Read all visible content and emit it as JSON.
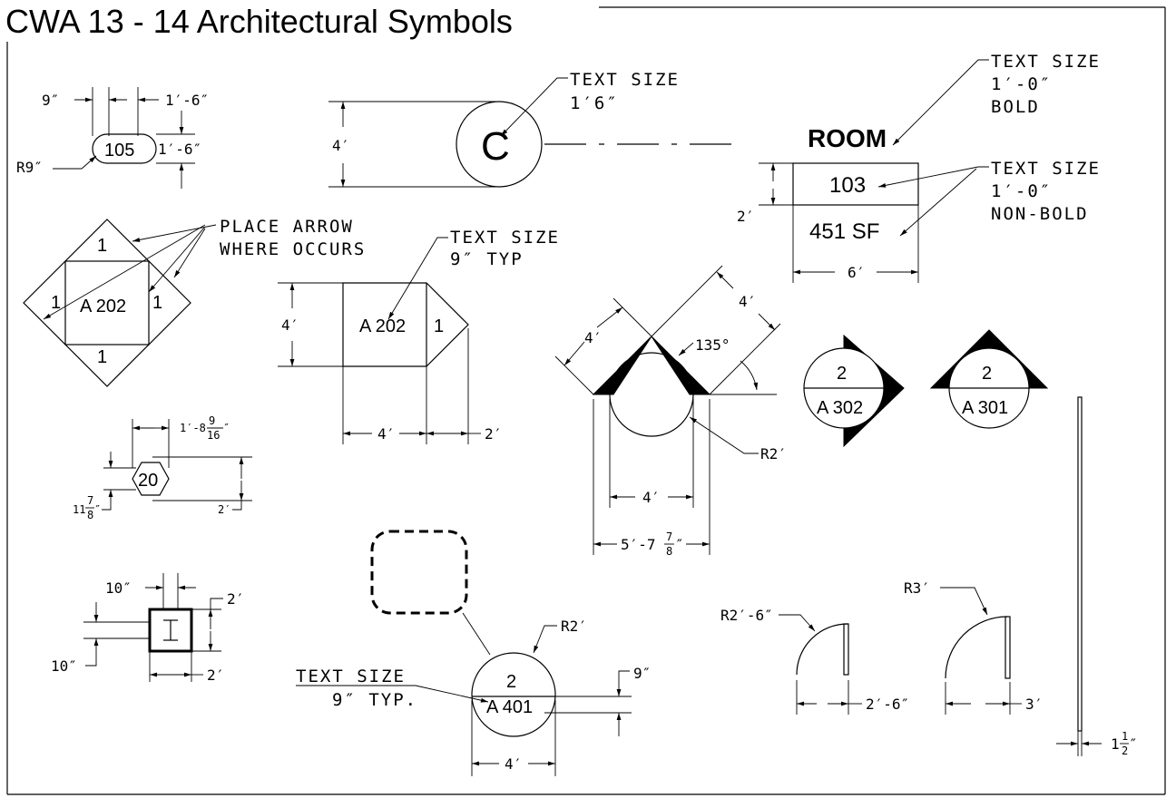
{
  "title": "CWA 13 - 14 Architectural Symbols",
  "room_tag": {
    "label_dim_top_left": "9″",
    "label_dim_top_right": "1′-6″",
    "number": "105",
    "height_dim": "1′-6″",
    "radius": "R9″"
  },
  "section_tag": {
    "note_line1": "TEXT SIZE",
    "note_line2": "1′6″",
    "height": "4′",
    "letter": "C"
  },
  "room_name_tag": {
    "bold_note_1": "TEXT SIZE",
    "bold_note_2": "1′-0″",
    "bold_note_3": "BOLD",
    "name": "ROOM",
    "number": "103",
    "area": "451 SF",
    "nonbold_note_1": "TEXT SIZE",
    "nonbold_note_2": "1′-0″",
    "nonbold_note_3": "NON-BOLD",
    "height": "2′",
    "width": "6′"
  },
  "interior_elevation": {
    "note_1": "PLACE ARROW",
    "note_2": "WHERE OCCURS",
    "top": "1",
    "left": "1",
    "right": "1",
    "bottom": "1",
    "sheet": "A 202"
  },
  "elevation_tag": {
    "note_1": "TEXT SIZE",
    "note_2": "9″ TYP",
    "height": "4′",
    "sheet": "A 202",
    "number": "1",
    "width": "4′",
    "point": "2′"
  },
  "detail_tag": {
    "side": "4′",
    "side2": "4′",
    "angle": "135°",
    "radius": "R2′",
    "diameter": "4′",
    "overall": "5′-7",
    "overall_frac_num": "7",
    "overall_frac_den": "8",
    "overall_inch": "″"
  },
  "section_tag_302": {
    "number": "2",
    "sheet": "A 302"
  },
  "section_tag_301": {
    "number": "2",
    "sheet": "A 301"
  },
  "hex_tag": {
    "width": "1′-8",
    "width_frac_num": "9",
    "width_frac_den": "16",
    "width_inch": "″",
    "number": "20",
    "height": "11",
    "height_frac_num": "7",
    "height_frac_den": "8",
    "height_inch": "″",
    "depth": "2′"
  },
  "column_tag": {
    "top": "10″",
    "right": "2′",
    "left": "10″",
    "bottom": "2′"
  },
  "callout_tag": {
    "radius": "R2′",
    "note_1": "TEXT SIZE",
    "note_2": "9″ TYP.",
    "number": "2",
    "sheet": "A 401",
    "text_height": "9″",
    "diameter": "4′"
  },
  "door_1": {
    "radius": "R2′-6″",
    "width": "2′-6″"
  },
  "door_2": {
    "radius": "R3′",
    "width": "3′"
  },
  "wall": {
    "thickness": "1",
    "thickness_frac_num": "1",
    "thickness_frac_den": "2",
    "thickness_inch": "″"
  }
}
